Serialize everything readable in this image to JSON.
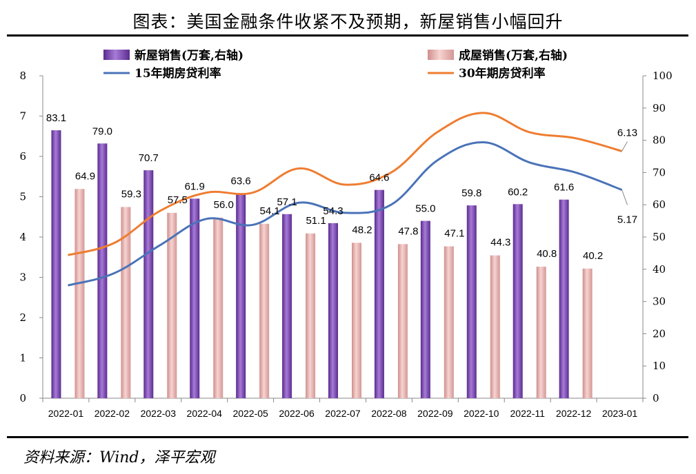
{
  "page": {
    "title": "图表：美国金融条件收紧不及预期，新屋销售小幅回升",
    "source": "资料来源：Wind，泽平宏观"
  },
  "chart_data": {
    "type": "bar+line",
    "categories": [
      "2022-01",
      "2022-02",
      "2022-03",
      "2022-04",
      "2022-05",
      "2022-06",
      "2022-07",
      "2022-08",
      "2022-09",
      "2022-10",
      "2022-11",
      "2022-12",
      "2023-01"
    ],
    "y_left": {
      "range": [
        0,
        8
      ],
      "ticks": [
        0,
        1,
        2,
        3,
        4,
        5,
        6,
        7,
        8
      ]
    },
    "y_right": {
      "range": [
        0,
        100
      ],
      "ticks": [
        0,
        10,
        20,
        30,
        40,
        50,
        60,
        70,
        80,
        90,
        100
      ]
    },
    "legend_position": "top",
    "grid": false,
    "series": [
      {
        "name": "新屋销售(万套,右轴)",
        "kind": "bar",
        "axis": "right",
        "color": "#7b3fb0",
        "values": [
          83.1,
          79.0,
          70.7,
          61.9,
          63.6,
          57.1,
          54.3,
          64.6,
          55.0,
          59.8,
          60.2,
          61.6,
          null
        ],
        "labels": [
          "83.1",
          "79.0",
          "70.7",
          "61.9",
          "63.6",
          "57.1",
          "54.3",
          "64.6",
          "55.0",
          "59.8",
          "60.2",
          "61.6",
          ""
        ]
      },
      {
        "name": "成屋销售(万套,右轴)",
        "kind": "bar",
        "axis": "right",
        "color": "#e8b0ad",
        "values": [
          64.9,
          59.3,
          57.5,
          56.0,
          54.1,
          51.1,
          48.2,
          47.8,
          47.1,
          44.3,
          40.8,
          40.2,
          null
        ],
        "labels": [
          "64.9",
          "59.3",
          "57.5",
          "56.0",
          "54.1",
          "51.1",
          "48.2",
          "47.8",
          "47.1",
          "44.3",
          "40.8",
          "40.2",
          ""
        ]
      },
      {
        "name": "15年期房贷利率",
        "kind": "line",
        "axis": "left",
        "color": "#4a73b8",
        "values": [
          2.8,
          3.1,
          3.8,
          4.45,
          4.3,
          4.85,
          4.6,
          4.8,
          5.9,
          6.35,
          5.85,
          5.6,
          5.17
        ],
        "last_label": "5.17"
      },
      {
        "name": "30年期房贷利率",
        "kind": "line",
        "axis": "left",
        "color": "#ee7d31",
        "values": [
          3.55,
          3.85,
          4.65,
          5.1,
          5.1,
          5.7,
          5.3,
          5.6,
          6.6,
          7.08,
          6.6,
          6.45,
          6.13
        ],
        "last_label": "6.13"
      }
    ]
  }
}
